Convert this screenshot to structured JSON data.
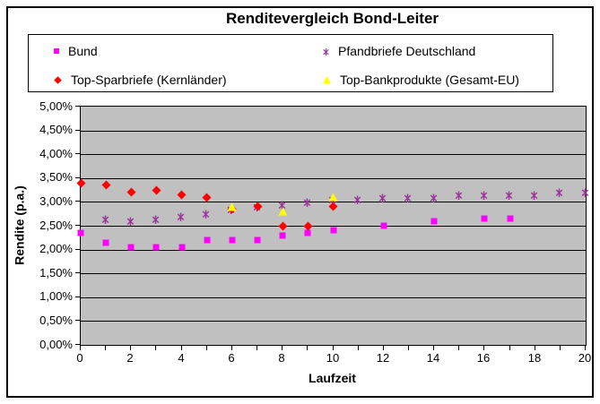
{
  "window": {
    "background": "#FFFFFF",
    "frame_border_color": "#000000"
  },
  "title": "Renditevergleich Bond-Leiter",
  "axes": {
    "x": {
      "title": "Laufzeit",
      "range": [
        0,
        20
      ],
      "tick_labels": [
        "0",
        "2",
        "4",
        "6",
        "8",
        "10",
        "12",
        "14",
        "16",
        "18",
        "20"
      ],
      "minor_tick_step": 1
    },
    "y": {
      "title": "Rendite (p.a.)",
      "range_pct": [
        0,
        5
      ],
      "tick_labels_top_down": [
        "5,00%",
        "4,50%",
        "4,00%",
        "3,50%",
        "3,00%",
        "2,50%",
        "2,00%",
        "1,50%",
        "1,00%",
        "0,50%",
        "0,00%"
      ]
    }
  },
  "plot": {
    "background": "#C0C0C0",
    "gridline_color": "#000000",
    "grid": "horizontal-major"
  },
  "chart_data": {
    "type": "scatter",
    "title": "Renditevergleich Bond-Leiter",
    "xlabel": "Laufzeit",
    "ylabel": "Rendite (p.a.)",
    "xlim": [
      0,
      20
    ],
    "ylim_pct": [
      0,
      5
    ],
    "legend_position": "top-box",
    "series": [
      {
        "name": "Bund",
        "marker": "square",
        "color": "#FF00FF",
        "points": [
          [
            0,
            2.35
          ],
          [
            1,
            2.15
          ],
          [
            2,
            2.05
          ],
          [
            3,
            2.05
          ],
          [
            4,
            2.05
          ],
          [
            5,
            2.2
          ],
          [
            6,
            2.2
          ],
          [
            7,
            2.2
          ],
          [
            8,
            2.3
          ],
          [
            9,
            2.35
          ],
          [
            10,
            2.4
          ],
          [
            12,
            2.5
          ],
          [
            14,
            2.6
          ],
          [
            16,
            2.65
          ],
          [
            17,
            2.65
          ]
        ]
      },
      {
        "name": "Pfandbriefe Deutschland",
        "marker": "star",
        "color": "#993399",
        "points": [
          [
            1,
            2.65
          ],
          [
            2,
            2.6
          ],
          [
            3,
            2.65
          ],
          [
            4,
            2.7
          ],
          [
            5,
            2.75
          ],
          [
            6,
            2.85
          ],
          [
            7,
            2.9
          ],
          [
            8,
            2.95
          ],
          [
            9,
            3.0
          ],
          [
            10,
            3.05
          ],
          [
            11,
            3.05
          ],
          [
            12,
            3.1
          ],
          [
            13,
            3.1
          ],
          [
            14,
            3.1
          ],
          [
            15,
            3.15
          ],
          [
            16,
            3.15
          ],
          [
            17,
            3.15
          ],
          [
            18,
            3.15
          ],
          [
            19,
            3.2
          ],
          [
            20,
            3.2
          ]
        ]
      },
      {
        "name": "Top-Sparbriefe (Kernländer)",
        "marker": "diamond",
        "color": "#FF0000",
        "points": [
          [
            0,
            3.4
          ],
          [
            1,
            3.35
          ],
          [
            2,
            3.2
          ],
          [
            3,
            3.25
          ],
          [
            4,
            3.15
          ],
          [
            5,
            3.1
          ],
          [
            6,
            2.85
          ],
          [
            7,
            2.9
          ],
          [
            8,
            2.5
          ],
          [
            9,
            2.5
          ],
          [
            10,
            2.9
          ]
        ]
      },
      {
        "name": "Top-Bankprodukte (Gesamt-EU)",
        "marker": "triangle",
        "color": "#FFFF00",
        "points": [
          [
            6,
            2.9
          ],
          [
            8,
            2.8
          ],
          [
            10,
            3.1
          ]
        ]
      }
    ]
  }
}
